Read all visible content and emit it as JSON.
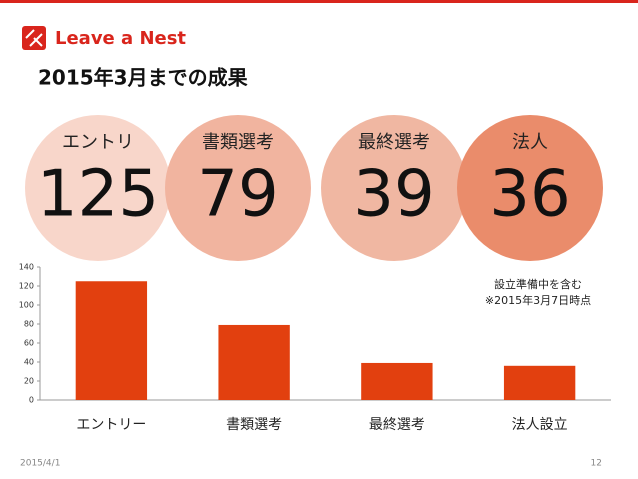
{
  "header": {
    "brand": "Leave a Nest"
  },
  "title": "2015年3月までの成果",
  "circles": [
    {
      "label": "エントリ",
      "number": "125",
      "color": "#f8d6ca"
    },
    {
      "label": "書類選考",
      "number": "79",
      "color": "#f1b49f"
    },
    {
      "label": "最終選考",
      "number": "39",
      "color": "#f0b7a2"
    },
    {
      "label": "法人",
      "number": "36",
      "color": "#ea8c6b"
    }
  ],
  "chart_data": {
    "type": "bar",
    "categories": [
      "エントリー",
      "書類選考",
      "最終選考",
      "法人設立"
    ],
    "values": [
      125,
      79,
      39,
      36
    ],
    "color": "#e2400f",
    "ylim": [
      0,
      140
    ],
    "yticks": [
      0,
      20,
      40,
      60,
      80,
      100,
      120,
      140
    ],
    "grid": false,
    "annotations": [
      "設立準備中を含む",
      "※2015年3月7日時点"
    ]
  },
  "footer": {
    "date": "2015/4/1",
    "page": "12"
  }
}
